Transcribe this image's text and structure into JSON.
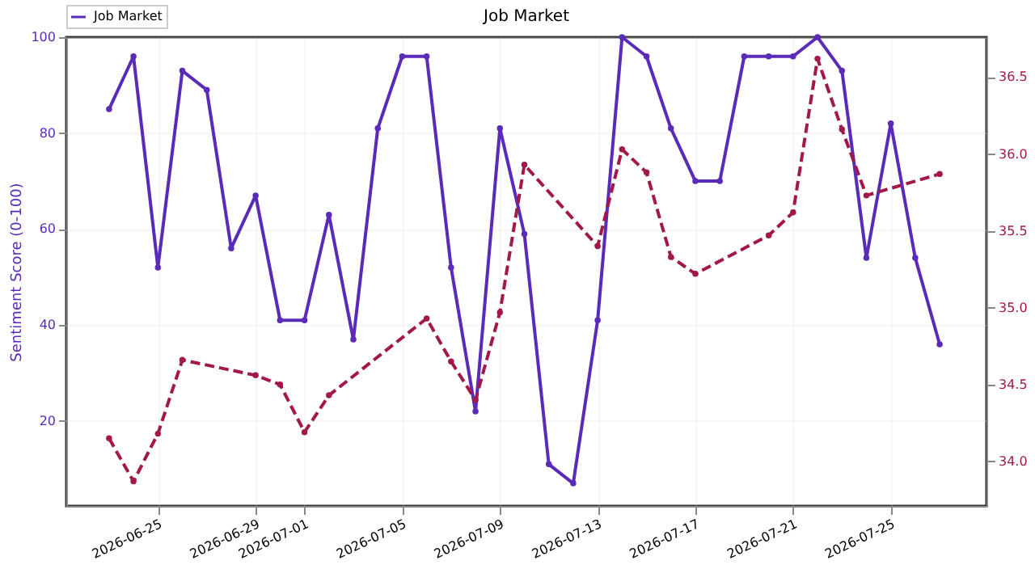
{
  "chart_data": {
    "type": "line",
    "title": "Job Market",
    "ylabel": "Sentiment Score (0-100)",
    "xlim": [
      "2026-06-21T06:00",
      "2026-07-28T22:00"
    ],
    "xticks": [
      "2026-06-25",
      "2026-06-29",
      "2026-07-01",
      "2026-07-05",
      "2026-07-09",
      "2026-07-13",
      "2026-07-17",
      "2026-07-21",
      "2026-07-25"
    ],
    "ylim": [
      2.3,
      100
    ],
    "yticks": [
      20,
      40,
      60,
      80,
      100
    ],
    "y2lim": [
      33.71,
      36.76
    ],
    "y2ticks": [
      {
        "value": 34,
        "label": "34.0"
      },
      34.5,
      {
        "value": 35,
        "label": "35.0"
      },
      35.5,
      {
        "value": 36,
        "label": "36.0"
      },
      36.5
    ],
    "grid": true,
    "legend": "top left",
    "marker": "circle",
    "series": [
      {
        "name": "Job Market",
        "color": "#5a2bb8",
        "line_style": "solid",
        "x": [
          "2026-06-23",
          "2026-06-24",
          "2026-06-25",
          "2026-06-26",
          "2026-06-27",
          "2026-06-28",
          "2026-06-29",
          "2026-06-30",
          "2026-07-01",
          "2026-07-02",
          "2026-07-03",
          "2026-07-04",
          "2026-07-05",
          "2026-07-06",
          "2026-07-07",
          "2026-07-08",
          "2026-07-09",
          "2026-07-10",
          "2026-07-11",
          "2026-07-12",
          "2026-07-13",
          "2026-07-14",
          "2026-07-15",
          "2026-07-16",
          "2026-07-17",
          "2026-07-18",
          "2026-07-19",
          "2026-07-20",
          "2026-07-21",
          "2026-07-22",
          "2026-07-23",
          "2026-07-24",
          "2026-07-25",
          "2026-07-26",
          "2026-07-27"
        ],
        "values": [
          85,
          96,
          52,
          93,
          89,
          56,
          67,
          41,
          41,
          63,
          37,
          81,
          96,
          96,
          52,
          22,
          81,
          59,
          11,
          7,
          41,
          100,
          96,
          81,
          70,
          70,
          96,
          96,
          96,
          100,
          93,
          54,
          82,
          54,
          36
        ]
      },
      {
        "color": "#a3184a",
        "line_style": "dashed",
        "axis": "y2",
        "x": [
          "2026-06-23",
          "2026-06-24",
          "2026-06-25",
          "2026-06-26",
          "2026-06-29",
          "2026-06-30",
          "2026-07-01",
          "2026-07-02",
          "2026-07-06",
          "2026-07-07",
          "2026-07-08",
          "2026-07-09",
          "2026-07-10",
          "2026-07-13",
          "2026-07-14",
          "2026-07-15",
          "2026-07-16",
          "2026-07-17",
          "2026-07-20",
          "2026-07-21",
          "2026-07-22",
          "2026-07-23",
          "2026-07-24",
          "2026-07-27"
        ],
        "values": [
          34.15,
          33.87,
          34.18,
          34.66,
          34.56,
          34.5,
          34.19,
          34.43,
          34.93,
          34.65,
          34.4,
          34.97,
          35.93,
          35.4,
          36.03,
          35.88,
          35.33,
          35.22,
          35.47,
          35.62,
          36.62,
          36.16,
          35.73,
          35.87
        ]
      }
    ]
  }
}
